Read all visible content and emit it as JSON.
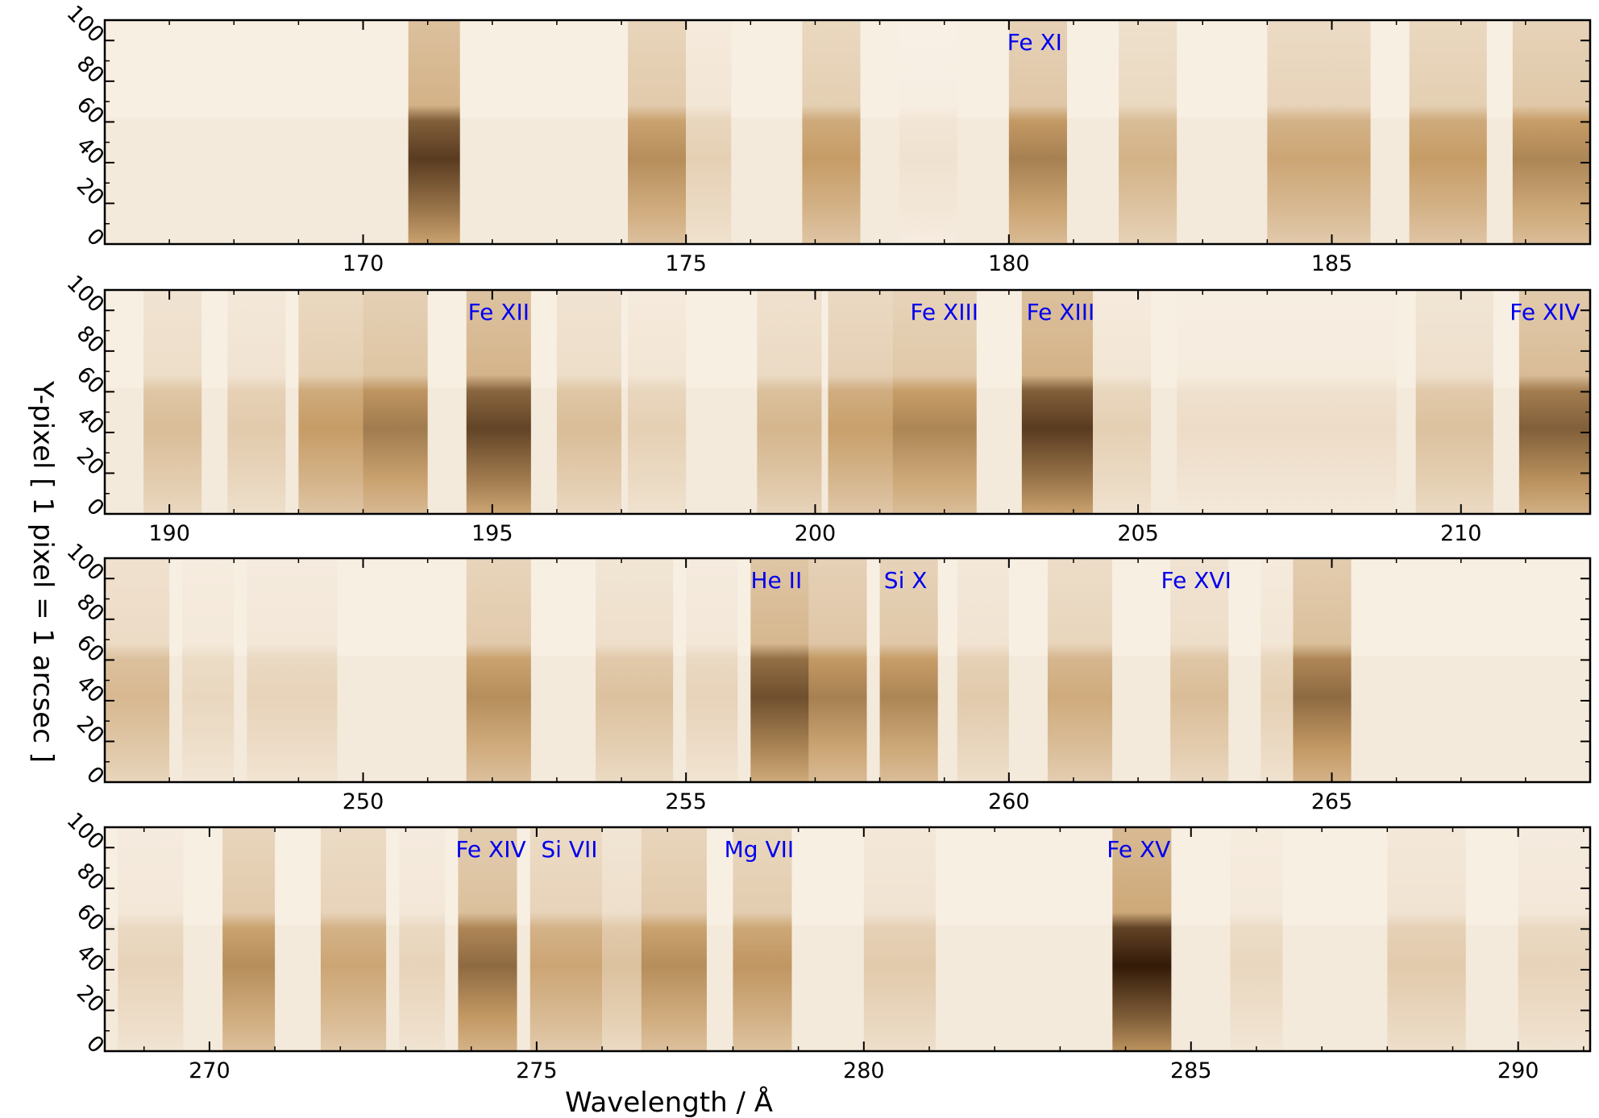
{
  "chart_data": [
    {
      "type": "heatmap",
      "panel": 1,
      "xlim": [
        166.0,
        189.0
      ],
      "ylim": [
        0,
        110
      ],
      "xticks": [
        170,
        175,
        180,
        185
      ],
      "yticks": [
        0,
        20,
        40,
        60,
        80,
        100
      ],
      "line_labels": [
        {
          "text": "Fe XI",
          "x": 180.4
        }
      ],
      "bands": [
        {
          "x0": 170.7,
          "x1": 171.5,
          "intensity": 0.85
        },
        {
          "x0": 174.1,
          "x1": 175.0,
          "intensity": 0.55
        },
        {
          "x0": 175.0,
          "x1": 175.7,
          "intensity": 0.22
        },
        {
          "x0": 176.8,
          "x1": 177.7,
          "intensity": 0.5
        },
        {
          "x0": 178.3,
          "x1": 179.2,
          "intensity": 0.12
        },
        {
          "x0": 180.0,
          "x1": 180.9,
          "intensity": 0.6
        },
        {
          "x0": 181.7,
          "x1": 182.6,
          "intensity": 0.38
        },
        {
          "x0": 184.0,
          "x1": 185.6,
          "intensity": 0.45
        },
        {
          "x0": 186.2,
          "x1": 187.4,
          "intensity": 0.5
        },
        {
          "x0": 187.8,
          "x1": 189.0,
          "intensity": 0.58
        }
      ]
    },
    {
      "type": "heatmap",
      "panel": 2,
      "xlim": [
        189.0,
        212.0
      ],
      "ylim": [
        0,
        110
      ],
      "xticks": [
        190,
        195,
        200,
        205,
        210
      ],
      "yticks": [
        0,
        20,
        40,
        60,
        80,
        100
      ],
      "line_labels": [
        {
          "text": "Fe XII",
          "x": 195.1
        },
        {
          "text": "Fe XIII",
          "x": 202.0
        },
        {
          "text": "Fe XIII",
          "x": 203.8
        },
        {
          "text": "Fe XIV",
          "x": 211.3
        }
      ],
      "bands": [
        {
          "x0": 189.6,
          "x1": 190.5,
          "intensity": 0.32
        },
        {
          "x0": 190.9,
          "x1": 191.8,
          "intensity": 0.25
        },
        {
          "x0": 192.0,
          "x1": 193.0,
          "intensity": 0.5
        },
        {
          "x0": 193.0,
          "x1": 194.0,
          "intensity": 0.62
        },
        {
          "x0": 194.6,
          "x1": 195.6,
          "intensity": 0.82
        },
        {
          "x0": 196.0,
          "x1": 197.0,
          "intensity": 0.32
        },
        {
          "x0": 197.1,
          "x1": 198.0,
          "intensity": 0.22
        },
        {
          "x0": 199.1,
          "x1": 200.1,
          "intensity": 0.36
        },
        {
          "x0": 200.2,
          "x1": 201.2,
          "intensity": 0.48
        },
        {
          "x0": 201.2,
          "x1": 202.5,
          "intensity": 0.58
        },
        {
          "x0": 203.2,
          "x1": 204.3,
          "intensity": 0.85
        },
        {
          "x0": 204.3,
          "x1": 205.2,
          "intensity": 0.22
        },
        {
          "x0": 205.6,
          "x1": 209.0,
          "intensity": 0.15
        },
        {
          "x0": 209.3,
          "x1": 210.5,
          "intensity": 0.3
        },
        {
          "x0": 210.9,
          "x1": 212.0,
          "intensity": 0.72
        }
      ]
    },
    {
      "type": "heatmap",
      "panel": 3,
      "xlim": [
        246.0,
        269.0
      ],
      "ylim": [
        0,
        110
      ],
      "xticks": [
        250,
        255,
        260,
        265
      ],
      "yticks": [
        0,
        20,
        40,
        60,
        80,
        100
      ],
      "line_labels": [
        {
          "text": "He II",
          "x": 256.4
        },
        {
          "text": "Si X",
          "x": 258.4
        },
        {
          "text": "Fe XVI",
          "x": 262.9
        }
      ],
      "bands": [
        {
          "x0": 246.0,
          "x1": 247.0,
          "intensity": 0.35
        },
        {
          "x0": 247.2,
          "x1": 248.0,
          "intensity": 0.18
        },
        {
          "x0": 248.2,
          "x1": 249.6,
          "intensity": 0.2
        },
        {
          "x0": 251.6,
          "x1": 252.6,
          "intensity": 0.55
        },
        {
          "x0": 253.6,
          "x1": 254.8,
          "intensity": 0.3
        },
        {
          "x0": 255.0,
          "x1": 255.8,
          "intensity": 0.2
        },
        {
          "x0": 256.0,
          "x1": 256.9,
          "intensity": 0.78
        },
        {
          "x0": 256.9,
          "x1": 257.8,
          "intensity": 0.6
        },
        {
          "x0": 258.0,
          "x1": 258.9,
          "intensity": 0.58
        },
        {
          "x0": 259.2,
          "x1": 260.0,
          "intensity": 0.25
        },
        {
          "x0": 260.6,
          "x1": 261.6,
          "intensity": 0.42
        },
        {
          "x0": 262.5,
          "x1": 263.4,
          "intensity": 0.32
        },
        {
          "x0": 263.9,
          "x1": 264.4,
          "intensity": 0.22
        },
        {
          "x0": 264.4,
          "x1": 265.3,
          "intensity": 0.68
        }
      ]
    },
    {
      "type": "heatmap",
      "panel": 4,
      "xlim": [
        268.4,
        291.1
      ],
      "ylim": [
        0,
        110
      ],
      "xticks": [
        270,
        275,
        280,
        285,
        290
      ],
      "yticks": [
        0,
        20,
        40,
        60,
        80,
        100
      ],
      "line_labels": [
        {
          "text": "Fe XIV",
          "x": 274.3
        },
        {
          "text": "Si VII",
          "x": 275.5
        },
        {
          "text": "Mg VII",
          "x": 278.4
        },
        {
          "text": "Fe XV",
          "x": 284.2
        }
      ],
      "bands": [
        {
          "x0": 268.6,
          "x1": 269.6,
          "intensity": 0.2
        },
        {
          "x0": 270.2,
          "x1": 271.0,
          "intensity": 0.55
        },
        {
          "x0": 271.7,
          "x1": 272.7,
          "intensity": 0.45
        },
        {
          "x0": 272.9,
          "x1": 273.6,
          "intensity": 0.2
        },
        {
          "x0": 273.8,
          "x1": 274.7,
          "intensity": 0.68
        },
        {
          "x0": 274.9,
          "x1": 276.0,
          "intensity": 0.45
        },
        {
          "x0": 276.0,
          "x1": 276.6,
          "intensity": 0.3
        },
        {
          "x0": 276.6,
          "x1": 277.6,
          "intensity": 0.55
        },
        {
          "x0": 278.0,
          "x1": 278.9,
          "intensity": 0.52
        },
        {
          "x0": 280.0,
          "x1": 281.1,
          "intensity": 0.25
        },
        {
          "x0": 283.8,
          "x1": 284.7,
          "intensity": 0.97
        },
        {
          "x0": 285.6,
          "x1": 286.4,
          "intensity": 0.18
        },
        {
          "x0": 288.0,
          "x1": 289.2,
          "intensity": 0.25
        },
        {
          "x0": 290.0,
          "x1": 291.1,
          "intensity": 0.2
        }
      ]
    }
  ],
  "axes": {
    "ylabel": "Y-pixel [ 1 pixel = 1 arcsec ]",
    "xlabel": "Wavelength / Å"
  },
  "colors": {
    "colormap_light": "#fdf8f1",
    "colormap_mid": "#c69c66",
    "colormap_dark": "#2a1202",
    "label_color": "#0000ee"
  }
}
